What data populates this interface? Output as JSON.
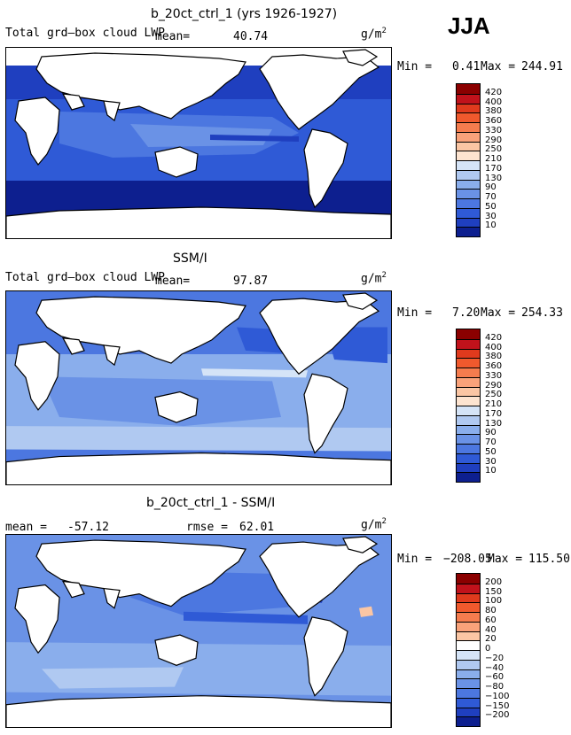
{
  "season": "JJA",
  "chart_data": [
    {
      "type": "heatmap",
      "title": "b_20ct_ctrl_1 (yrs 1926-1927)",
      "subtitle": "Total grd–box cloud LWP",
      "mean_label": "mean=",
      "mean": "40.74",
      "units": "g/m",
      "units_exp": "2",
      "min_label": "Min =",
      "min": "0.41",
      "max_label": "Max =",
      "max": "244.91",
      "levels": [
        "420",
        "400",
        "380",
        "360",
        "330",
        "290",
        "250",
        "210",
        "170",
        "130",
        "90",
        "70",
        "50",
        "30",
        "10"
      ],
      "colors": [
        "#8b0000",
        "#c1121b",
        "#e03a1d",
        "#f0592d",
        "#f57c4e",
        "#f9a27a",
        "#fbc6a4",
        "#fde4d0",
        "#d5e4f7",
        "#b0c9f1",
        "#8aaeec",
        "#6a92e6",
        "#4c77e0",
        "#2f5ad6",
        "#1f3fbf",
        "#0d1f8f"
      ]
    },
    {
      "type": "heatmap",
      "title": "SSM/I",
      "subtitle": "Total grd–box cloud LWP",
      "mean_label": "mean=",
      "mean": "97.87",
      "units": "g/m",
      "units_exp": "2",
      "min_label": "Min =",
      "min": "7.20",
      "max_label": "Max =",
      "max": "254.33",
      "levels": [
        "420",
        "400",
        "380",
        "360",
        "330",
        "290",
        "250",
        "210",
        "170",
        "130",
        "90",
        "70",
        "50",
        "30",
        "10"
      ],
      "colors": [
        "#8b0000",
        "#c1121b",
        "#e03a1d",
        "#f0592d",
        "#f57c4e",
        "#f9a27a",
        "#fbc6a4",
        "#fde4d0",
        "#d5e4f7",
        "#b0c9f1",
        "#8aaeec",
        "#6a92e6",
        "#4c77e0",
        "#2f5ad6",
        "#1f3fbf",
        "#0d1f8f"
      ]
    },
    {
      "type": "heatmap",
      "title": "b_20ct_ctrl_1 - SSM/I",
      "mean_label": "mean =",
      "mean": "-57.12",
      "rmse_label": "rmse =",
      "rmse": "62.01",
      "units": "g/m",
      "units_exp": "2",
      "min_label": "Min =",
      "min": "−208.05",
      "max_label": "Max =",
      "max": "115.50",
      "levels": [
        "200",
        "150",
        "100",
        "80",
        "60",
        "40",
        "20",
        "0",
        "−20",
        "−40",
        "−60",
        "−80",
        "−100",
        "−150",
        "−200"
      ],
      "colors": [
        "#8b0000",
        "#c1121b",
        "#e03a1d",
        "#f0592d",
        "#f57c4e",
        "#f9a27a",
        "#fbc6a4",
        "#ffffff",
        "#d5e4f7",
        "#b0c9f1",
        "#8aaeec",
        "#6a92e6",
        "#4c77e0",
        "#2f5ad6",
        "#1f3fbf",
        "#0d1f8f"
      ]
    }
  ]
}
